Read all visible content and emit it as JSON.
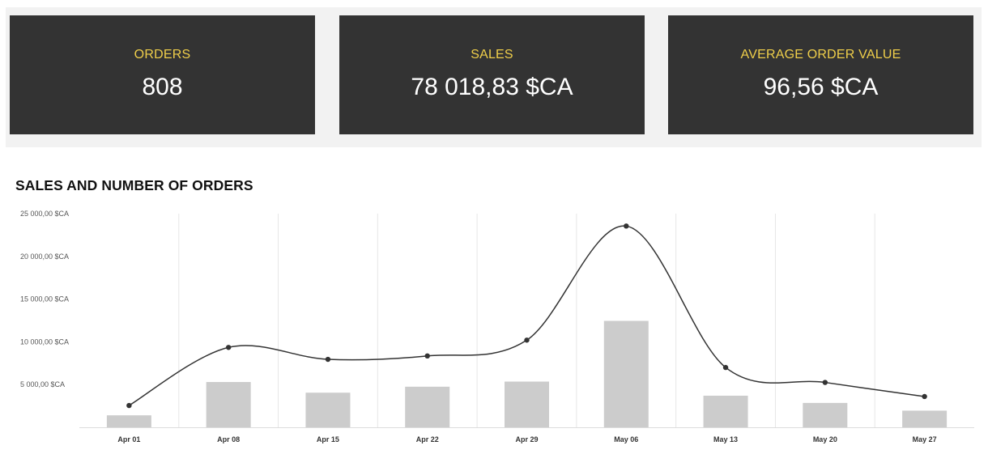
{
  "kpis": [
    {
      "label": "ORDERS",
      "value": "808"
    },
    {
      "label": "SALES",
      "value": "78 018,83 $CA"
    },
    {
      "label": "AVERAGE ORDER VALUE",
      "value": "96,56 $CA"
    }
  ],
  "colors": {
    "kpi_background": "#333333",
    "kpi_label": "#f0cf4a",
    "kpi_value": "#ffffff",
    "panel_background": "#f2f2f2",
    "bar": "#cccccc",
    "line": "#333333",
    "grid": "#e6e6e6"
  },
  "chart_data": {
    "type": "bar",
    "title": "SALES AND NUMBER OF ORDERS",
    "categories": [
      "Apr 01",
      "Apr 08",
      "Apr 15",
      "Apr 22",
      "Apr 29",
      "May 06",
      "May 13",
      "May 20",
      "May 27"
    ],
    "ylim": [
      0,
      25000
    ],
    "y_ticks": [
      {
        "value": 5000,
        "label": "5 000,00 $CA"
      },
      {
        "value": 10000,
        "label": "10 000,00 $CA"
      },
      {
        "value": 15000,
        "label": "15 000,00 $CA"
      },
      {
        "value": 20000,
        "label": "20 000,00 $CA"
      },
      {
        "value": 25000,
        "label": "25 000,00 $CA"
      }
    ],
    "grid": true,
    "legend": "none",
    "series": [
      {
        "type": "bar",
        "values": [
          1400,
          5300,
          4050,
          4750,
          5350,
          12450,
          3700,
          2850,
          1950
        ]
      },
      {
        "type": "line",
        "smooth": true,
        "values": [
          2550,
          9350,
          7950,
          8350,
          10200,
          23550,
          7000,
          5250,
          3600
        ]
      }
    ]
  }
}
